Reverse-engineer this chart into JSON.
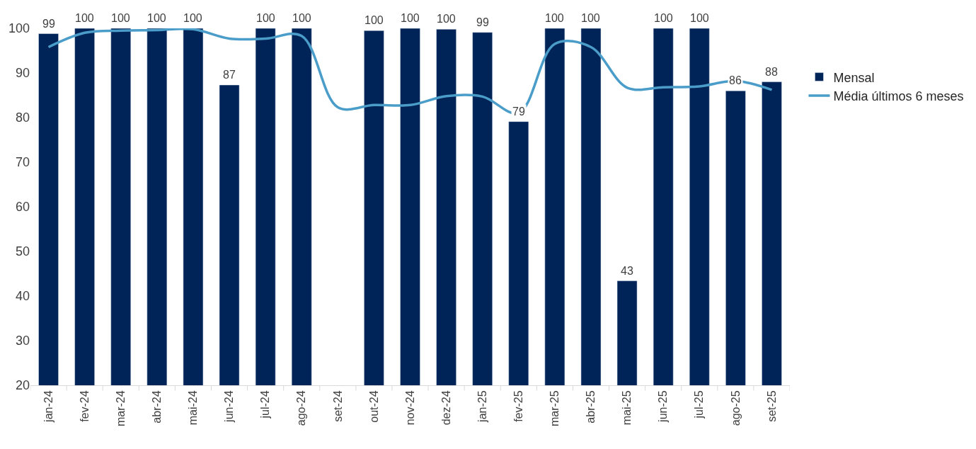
{
  "chart_data": {
    "type": "bar",
    "categories": [
      "jan-24",
      "fev-24",
      "mar-24",
      "abr-24",
      "mai-24",
      "jun-24",
      "jul-24",
      "ago-24",
      "set-24",
      "out-24",
      "nov-24",
      "dez-24",
      "jan-25",
      "fev-25",
      "mar-25",
      "abr-25",
      "mai-25",
      "jun-25",
      "jul-25",
      "ago-25",
      "set-25"
    ],
    "series": [
      {
        "name": "Mensal",
        "color": "#002457",
        "values": [
          98.8,
          100,
          100,
          100,
          100,
          87.3,
          100,
          100,
          null,
          99.5,
          100,
          99.8,
          99.1,
          79.1,
          100,
          100,
          43.4,
          100,
          100,
          86,
          88
        ],
        "value_labels": [
          "99",
          "100",
          "100",
          "100",
          "100",
          "87",
          "100",
          "100",
          null,
          "100",
          "100",
          "100",
          "99",
          "79",
          "100",
          "100",
          "43",
          "100",
          "100",
          "86",
          "88"
        ]
      },
      {
        "name": "Média últimos 6 meses",
        "type": "line",
        "color": "#4a9cc9",
        "values": [
          95.8,
          99,
          99.5,
          99.6,
          99.8,
          97.7,
          97.7,
          98.3,
          82.3,
          82.8,
          82.8,
          84.8,
          84.7,
          81,
          96.5,
          95.8,
          86.7,
          86.8,
          87,
          88.2,
          86.2
        ]
      }
    ],
    "ylim": [
      20,
      100
    ],
    "yticks": [
      20,
      30,
      40,
      50,
      60,
      70,
      80,
      90,
      100
    ],
    "legend": "right"
  }
}
